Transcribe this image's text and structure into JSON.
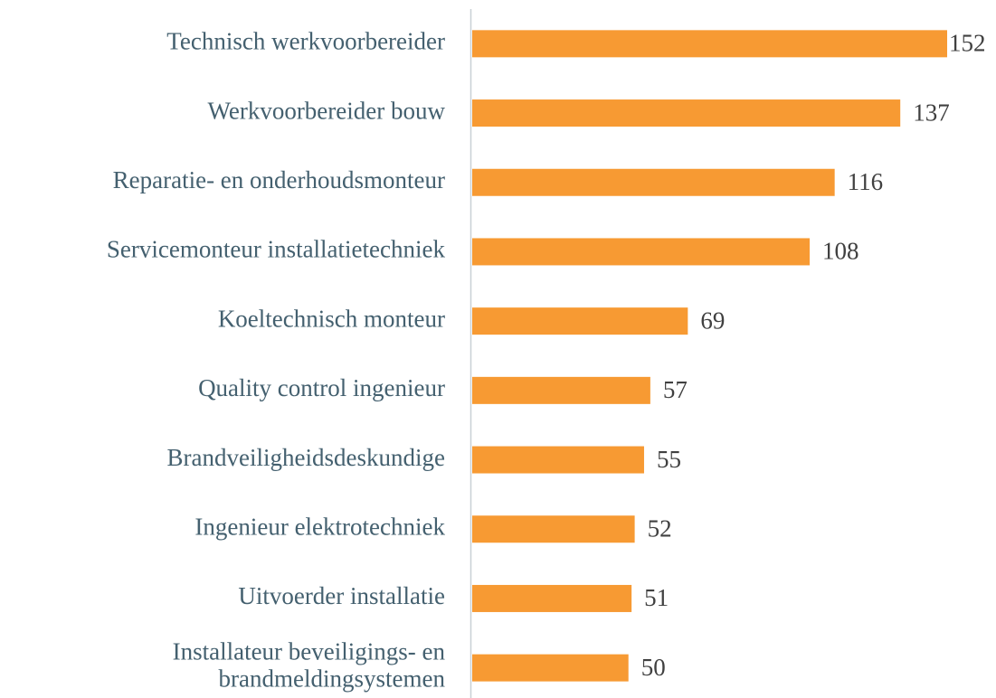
{
  "chart_data": {
    "type": "bar",
    "orientation": "horizontal",
    "categories": [
      "Technisch werkvoorbereider",
      "Werkvoorbereider bouw",
      "Reparatie- en onderhoudsmonteur",
      "Servicemonteur installatietechniek",
      "Koeltechnisch monteur",
      "Quality control ingenieur",
      "Brandveiligheidsdeskundige",
      "Ingenieur elektrotechniek",
      "Uitvoerder installatie",
      "Installateur beveiligings- en brandmeldingsystemen"
    ],
    "values": [
      152,
      137,
      116,
      108,
      69,
      57,
      55,
      52,
      51,
      50
    ],
    "color": "#f79a33",
    "xlim": [
      0,
      160
    ]
  }
}
